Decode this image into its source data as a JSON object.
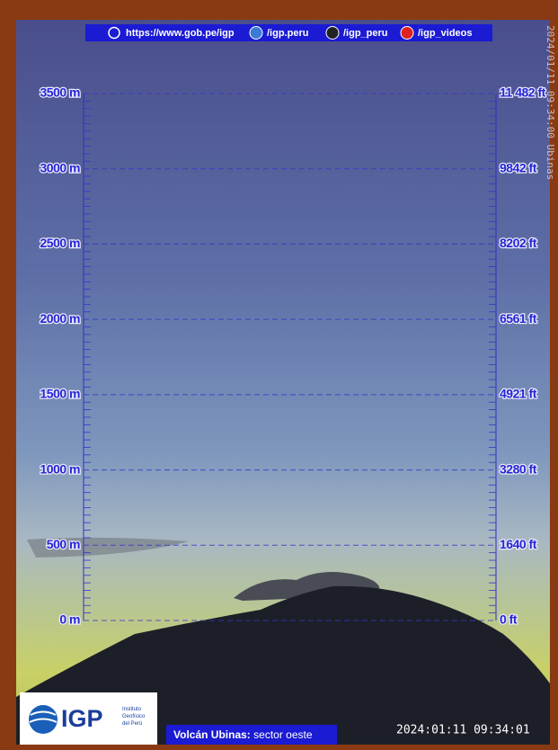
{
  "header": {
    "links": [
      "https://www.gob.pe/igp",
      "/igp.peru",
      "/igp_peru",
      "/igp_videos"
    ]
  },
  "scale": {
    "meters": [
      "3500 m",
      "3000 m",
      "2500 m",
      "2000 m",
      "1500 m",
      "1000 m",
      "500 m",
      "0 m"
    ],
    "feet": [
      "11 482 ft",
      "9842 ft",
      "8202 ft",
      "6561 ft",
      "4921 ft",
      "3280 ft",
      "1640 ft",
      "0 ft"
    ]
  },
  "side_stamp": "2024/01/11 09:34:00 Ubinas",
  "logo": {
    "name": "IGP",
    "lines": [
      "Instituto",
      "Geofísico",
      "del Perú"
    ]
  },
  "caption": {
    "place": "Volcán Ubinas:",
    "sector": "sector oeste"
  },
  "timestamp": "2024:01:11 09:34:01"
}
